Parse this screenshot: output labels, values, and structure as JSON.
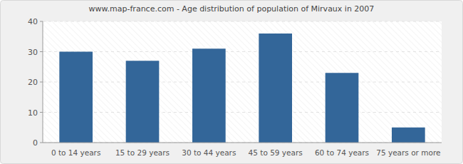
{
  "chart_data": {
    "type": "bar",
    "title": "www.map-france.com - Age distribution of population of Mirvaux in 2007",
    "categories": [
      "0 to 14 years",
      "15 to 29 years",
      "30 to 44 years",
      "45 to 59 years",
      "60 to 74 years",
      "75 years or more"
    ],
    "values": [
      30,
      27,
      31,
      36,
      23,
      5
    ],
    "color": "#336699",
    "ylim": [
      0,
      40
    ],
    "yticks": [
      0,
      10,
      20,
      30,
      40
    ],
    "grid": true
  }
}
